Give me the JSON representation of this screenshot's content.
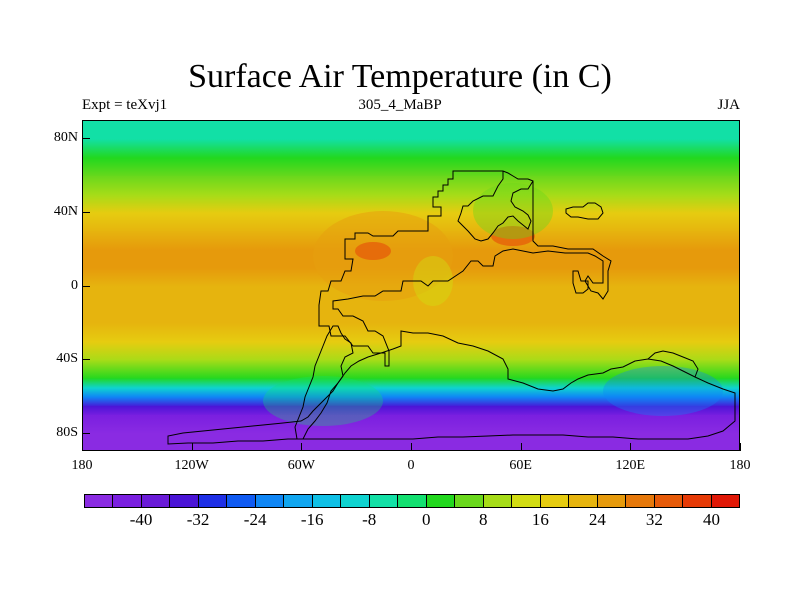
{
  "title": "Surface Air Temperature (in C)",
  "subtitle_left": "Expt = teXvj1",
  "subtitle_center": "305_4_MaBP",
  "subtitle_right": "JJA",
  "y_ticks": [
    "80N",
    "40N",
    "0",
    "40S",
    "80S"
  ],
  "x_ticks": [
    "180",
    "120W",
    "60W",
    "0",
    "60E",
    "120E",
    "180"
  ],
  "colorbar": {
    "labels": [
      "-40",
      "-32",
      "-24",
      "-16",
      "-8",
      "0",
      "8",
      "16",
      "24",
      "32",
      "40"
    ],
    "colors": [
      "#8a2be2",
      "#7a1fe0",
      "#6a1bd8",
      "#4a14d6",
      "#1e2fe6",
      "#0f5af2",
      "#0f86f5",
      "#10a6f0",
      "#0fc0e6",
      "#0fd3d0",
      "#12e0a6",
      "#12e070",
      "#22d81e",
      "#6ad81c",
      "#a6dc18",
      "#d2dc12",
      "#e6cc10",
      "#e6b40e",
      "#e69a0c",
      "#e6780a",
      "#e65a08",
      "#e63a06",
      "#e01806"
    ]
  },
  "chart_data": {
    "type": "heatmap",
    "title": "Surface Air Temperature (in C)",
    "x_range": [
      -180,
      180
    ],
    "y_range": [
      -90,
      90
    ],
    "colorbar_range": [
      -44,
      44
    ],
    "lat_temperature_profile": [
      {
        "lat": 90,
        "temp": -4
      },
      {
        "lat": 80,
        "temp": -2
      },
      {
        "lat": 70,
        "temp": 3
      },
      {
        "lat": 60,
        "temp": 8
      },
      {
        "lat": 50,
        "temp": 13
      },
      {
        "lat": 40,
        "temp": 18
      },
      {
        "lat": 30,
        "temp": 23
      },
      {
        "lat": 20,
        "temp": 27
      },
      {
        "lat": 10,
        "temp": 26
      },
      {
        "lat": 0,
        "temp": 24
      },
      {
        "lat": -10,
        "temp": 23
      },
      {
        "lat": -20,
        "temp": 22
      },
      {
        "lat": -30,
        "temp": 18
      },
      {
        "lat": -40,
        "temp": 10
      },
      {
        "lat": -50,
        "temp": 2
      },
      {
        "lat": -55,
        "temp": -8
      },
      {
        "lat": -60,
        "temp": -20
      },
      {
        "lat": -65,
        "temp": -30
      },
      {
        "lat": -70,
        "temp": -38
      },
      {
        "lat": -80,
        "temp": -42
      },
      {
        "lat": -90,
        "temp": -44
      }
    ]
  }
}
